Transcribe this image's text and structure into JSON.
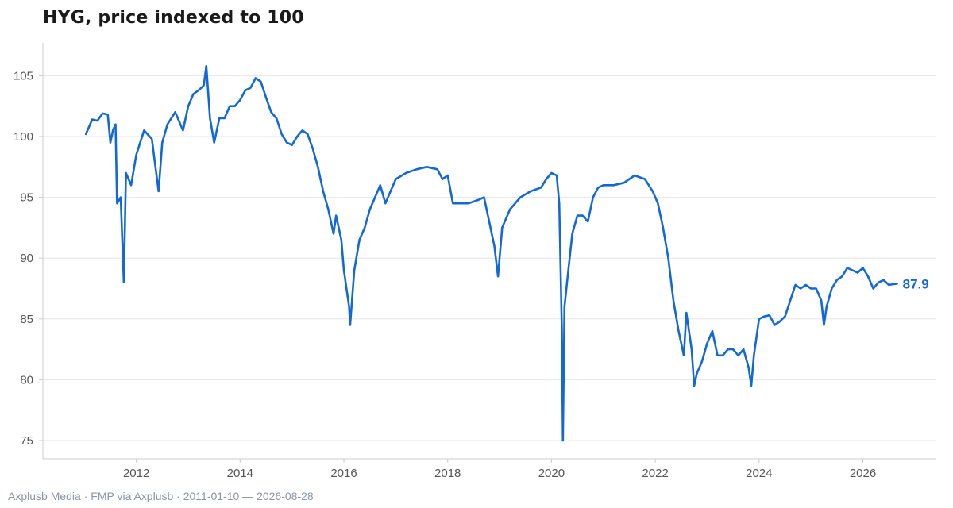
{
  "title": "HYG, price indexed to 100",
  "footer": "Axplusb Media · FMP via Axplusb · 2011-01-10 — 2026-08-28",
  "colors": {
    "line": "#1368d8",
    "grid": "#e6e6e6",
    "axis": "#cccccc",
    "end_label": "#1368d8"
  },
  "chart_data": {
    "type": "line",
    "title": "HYG, price indexed to 100",
    "xlabel": "",
    "ylabel": "",
    "xlim": [
      2010.2,
      2027.4
    ],
    "ylim": [
      73.5,
      107.7
    ],
    "x_ticks": [
      2012,
      2014,
      2016,
      2018,
      2020,
      2022,
      2024,
      2026
    ],
    "x_tick_labels": [
      "2012",
      "2014",
      "2016",
      "2018",
      "2020",
      "2022",
      "2024",
      "2026"
    ],
    "y_ticks": [
      75,
      80,
      85,
      90,
      95,
      100,
      105
    ],
    "y_tick_labels": [
      "75",
      "80",
      "85",
      "90",
      "95",
      "100",
      "105"
    ],
    "grid": "horizontal",
    "end_label": "87.9",
    "series": [
      {
        "x": [
          2011.03,
          2011.15,
          2011.25,
          2011.35,
          2011.45,
          2011.5,
          2011.55,
          2011.6,
          2011.63,
          2011.7,
          2011.76,
          2011.8,
          2011.9,
          2012.0,
          2012.15,
          2012.3,
          2012.43,
          2012.5,
          2012.6,
          2012.75,
          2012.9,
          2013.0,
          2013.1,
          2013.2,
          2013.3,
          2013.35,
          2013.42,
          2013.5,
          2013.6,
          2013.7,
          2013.8,
          2013.9,
          2014.0,
          2014.1,
          2014.2,
          2014.3,
          2014.4,
          2014.5,
          2014.6,
          2014.7,
          2014.8,
          2014.9,
          2015.0,
          2015.1,
          2015.2,
          2015.3,
          2015.4,
          2015.5,
          2015.6,
          2015.7,
          2015.8,
          2015.85,
          2015.95,
          2016.0,
          2016.1,
          2016.12,
          2016.2,
          2016.3,
          2016.4,
          2016.5,
          2016.6,
          2016.7,
          2016.8,
          2016.9,
          2017.0,
          2017.2,
          2017.4,
          2017.6,
          2017.8,
          2017.9,
          2018.0,
          2018.1,
          2018.2,
          2018.4,
          2018.6,
          2018.7,
          2018.8,
          2018.9,
          2018.97,
          2019.05,
          2019.2,
          2019.4,
          2019.6,
          2019.8,
          2019.9,
          2020.0,
          2020.1,
          2020.15,
          2020.2,
          2020.22,
          2020.25,
          2020.3,
          2020.4,
          2020.5,
          2020.6,
          2020.7,
          2020.8,
          2020.9,
          2021.0,
          2021.2,
          2021.4,
          2021.6,
          2021.8,
          2021.95,
          2022.05,
          2022.15,
          2022.25,
          2022.35,
          2022.45,
          2022.55,
          2022.6,
          2022.7,
          2022.75,
          2022.8,
          2022.9,
          2023.0,
          2023.1,
          2023.2,
          2023.3,
          2023.4,
          2023.5,
          2023.6,
          2023.7,
          2023.8,
          2023.85,
          2023.9,
          2024.0,
          2024.1,
          2024.2,
          2024.3,
          2024.4,
          2024.5,
          2024.6,
          2024.7,
          2024.8,
          2024.9,
          2025.0,
          2025.1,
          2025.2,
          2025.25,
          2025.3,
          2025.4,
          2025.5,
          2025.6,
          2025.7,
          2025.8,
          2025.9,
          2026.0,
          2026.1,
          2026.2,
          2026.3,
          2026.4,
          2026.5,
          2026.66
        ],
        "y": [
          100.2,
          101.4,
          101.3,
          101.9,
          101.8,
          99.5,
          100.5,
          101.0,
          94.5,
          95.0,
          88.0,
          97.0,
          96.0,
          98.5,
          100.5,
          99.8,
          95.5,
          99.5,
          101.0,
          102.0,
          100.5,
          102.5,
          103.5,
          103.8,
          104.2,
          105.8,
          101.5,
          99.5,
          101.5,
          101.5,
          102.5,
          102.5,
          103.0,
          103.8,
          104.0,
          104.8,
          104.5,
          103.2,
          102.0,
          101.5,
          100.2,
          99.5,
          99.3,
          100.0,
          100.5,
          100.2,
          99.0,
          97.5,
          95.5,
          94.0,
          92.0,
          93.5,
          91.5,
          89.0,
          86.0,
          84.5,
          89.0,
          91.5,
          92.5,
          94.0,
          95.0,
          96.0,
          94.5,
          95.5,
          96.5,
          97.0,
          97.3,
          97.5,
          97.3,
          96.5,
          96.8,
          94.5,
          94.5,
          94.5,
          94.8,
          95.0,
          93.0,
          91.0,
          88.5,
          92.5,
          94.0,
          95.0,
          95.5,
          95.8,
          96.5,
          97.0,
          96.8,
          94.5,
          84.0,
          75.0,
          86.0,
          88.0,
          92.0,
          93.5,
          93.5,
          93.0,
          95.0,
          95.8,
          96.0,
          96.0,
          96.2,
          96.8,
          96.5,
          95.5,
          94.5,
          92.5,
          90.0,
          86.5,
          84.0,
          82.0,
          85.5,
          82.5,
          79.5,
          80.5,
          81.5,
          83.0,
          84.0,
          82.0,
          82.0,
          82.5,
          82.5,
          82.0,
          82.5,
          81.0,
          79.5,
          82.0,
          85.0,
          85.2,
          85.3,
          84.5,
          84.8,
          85.2,
          86.5,
          87.8,
          87.5,
          87.8,
          87.5,
          87.5,
          86.5,
          84.5,
          86.0,
          87.5,
          88.2,
          88.5,
          89.2,
          89.0,
          88.8,
          89.2,
          88.5,
          87.5,
          88.0,
          88.2,
          87.8,
          87.9
        ]
      }
    ]
  }
}
